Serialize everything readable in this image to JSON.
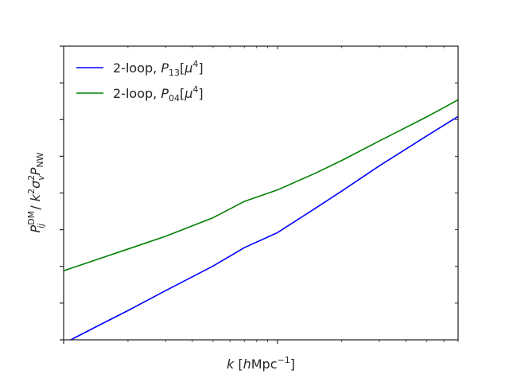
{
  "chart_data": {
    "type": "line",
    "title": "",
    "x_scale": "log",
    "y_scale": "log",
    "xlim": [
      0.01,
      0.7
    ],
    "ylim": [
      1e-05,
      1000
    ],
    "grid": false,
    "legend_position": "top-left",
    "series": [
      {
        "name": "2-loop, P13[μ4]",
        "color": "#0000ff",
        "x": [
          0.0108,
          0.015,
          0.02,
          0.03,
          0.05,
          0.07,
          0.1,
          0.15,
          0.2,
          0.3,
          0.5,
          0.7
        ],
        "y": [
          1e-05,
          2.68e-05,
          6.27e-05,
          0.000219,
          0.00102,
          0.00324,
          0.0083,
          0.0379,
          0.113,
          0.552,
          3.61,
          12.2
        ]
      },
      {
        "name": "2-loop, P04[μ4]",
        "color": "#008000",
        "x": [
          0.01,
          0.015,
          0.02,
          0.03,
          0.05,
          0.07,
          0.1,
          0.15,
          0.2,
          0.3,
          0.5,
          0.7
        ],
        "y": [
          0.00076,
          0.00169,
          0.00297,
          0.00661,
          0.0212,
          0.0588,
          0.121,
          0.343,
          0.769,
          2.62,
          11.9,
          34.5
        ]
      }
    ]
  },
  "axes": {
    "xlabel": "k [hMpc⁻¹]",
    "ylabel": "P_ij^DM / k²σ_v²P_NW"
  },
  "legend": {
    "entry1_prefix": "2-loop, ",
    "entry1_sym": "P",
    "entry1_sub": "13",
    "entry1_open": "[",
    "entry1_mu": "μ",
    "entry1_sup": "4",
    "entry1_close": "]",
    "entry2_prefix": "2-loop, ",
    "entry2_sym": "P",
    "entry2_sub": "04",
    "entry2_open": "[",
    "entry2_mu": "μ",
    "entry2_sup": "4",
    "entry2_close": "]"
  },
  "xlabel_parts": {
    "k": "k",
    "bracket_open": " [",
    "h": "h",
    "unit": "Mpc",
    "exp": "−1",
    "bracket_close": "]"
  },
  "ylabel_parts": {
    "p": "P",
    "sup": "DM",
    "sub": "ij",
    "slash": " / ",
    "k": "k",
    "k_exp": "2",
    "sigma": "σ",
    "sigma_exp": "2",
    "sigma_sub": "v",
    "p2": "P",
    "p2_sub": "NW"
  }
}
